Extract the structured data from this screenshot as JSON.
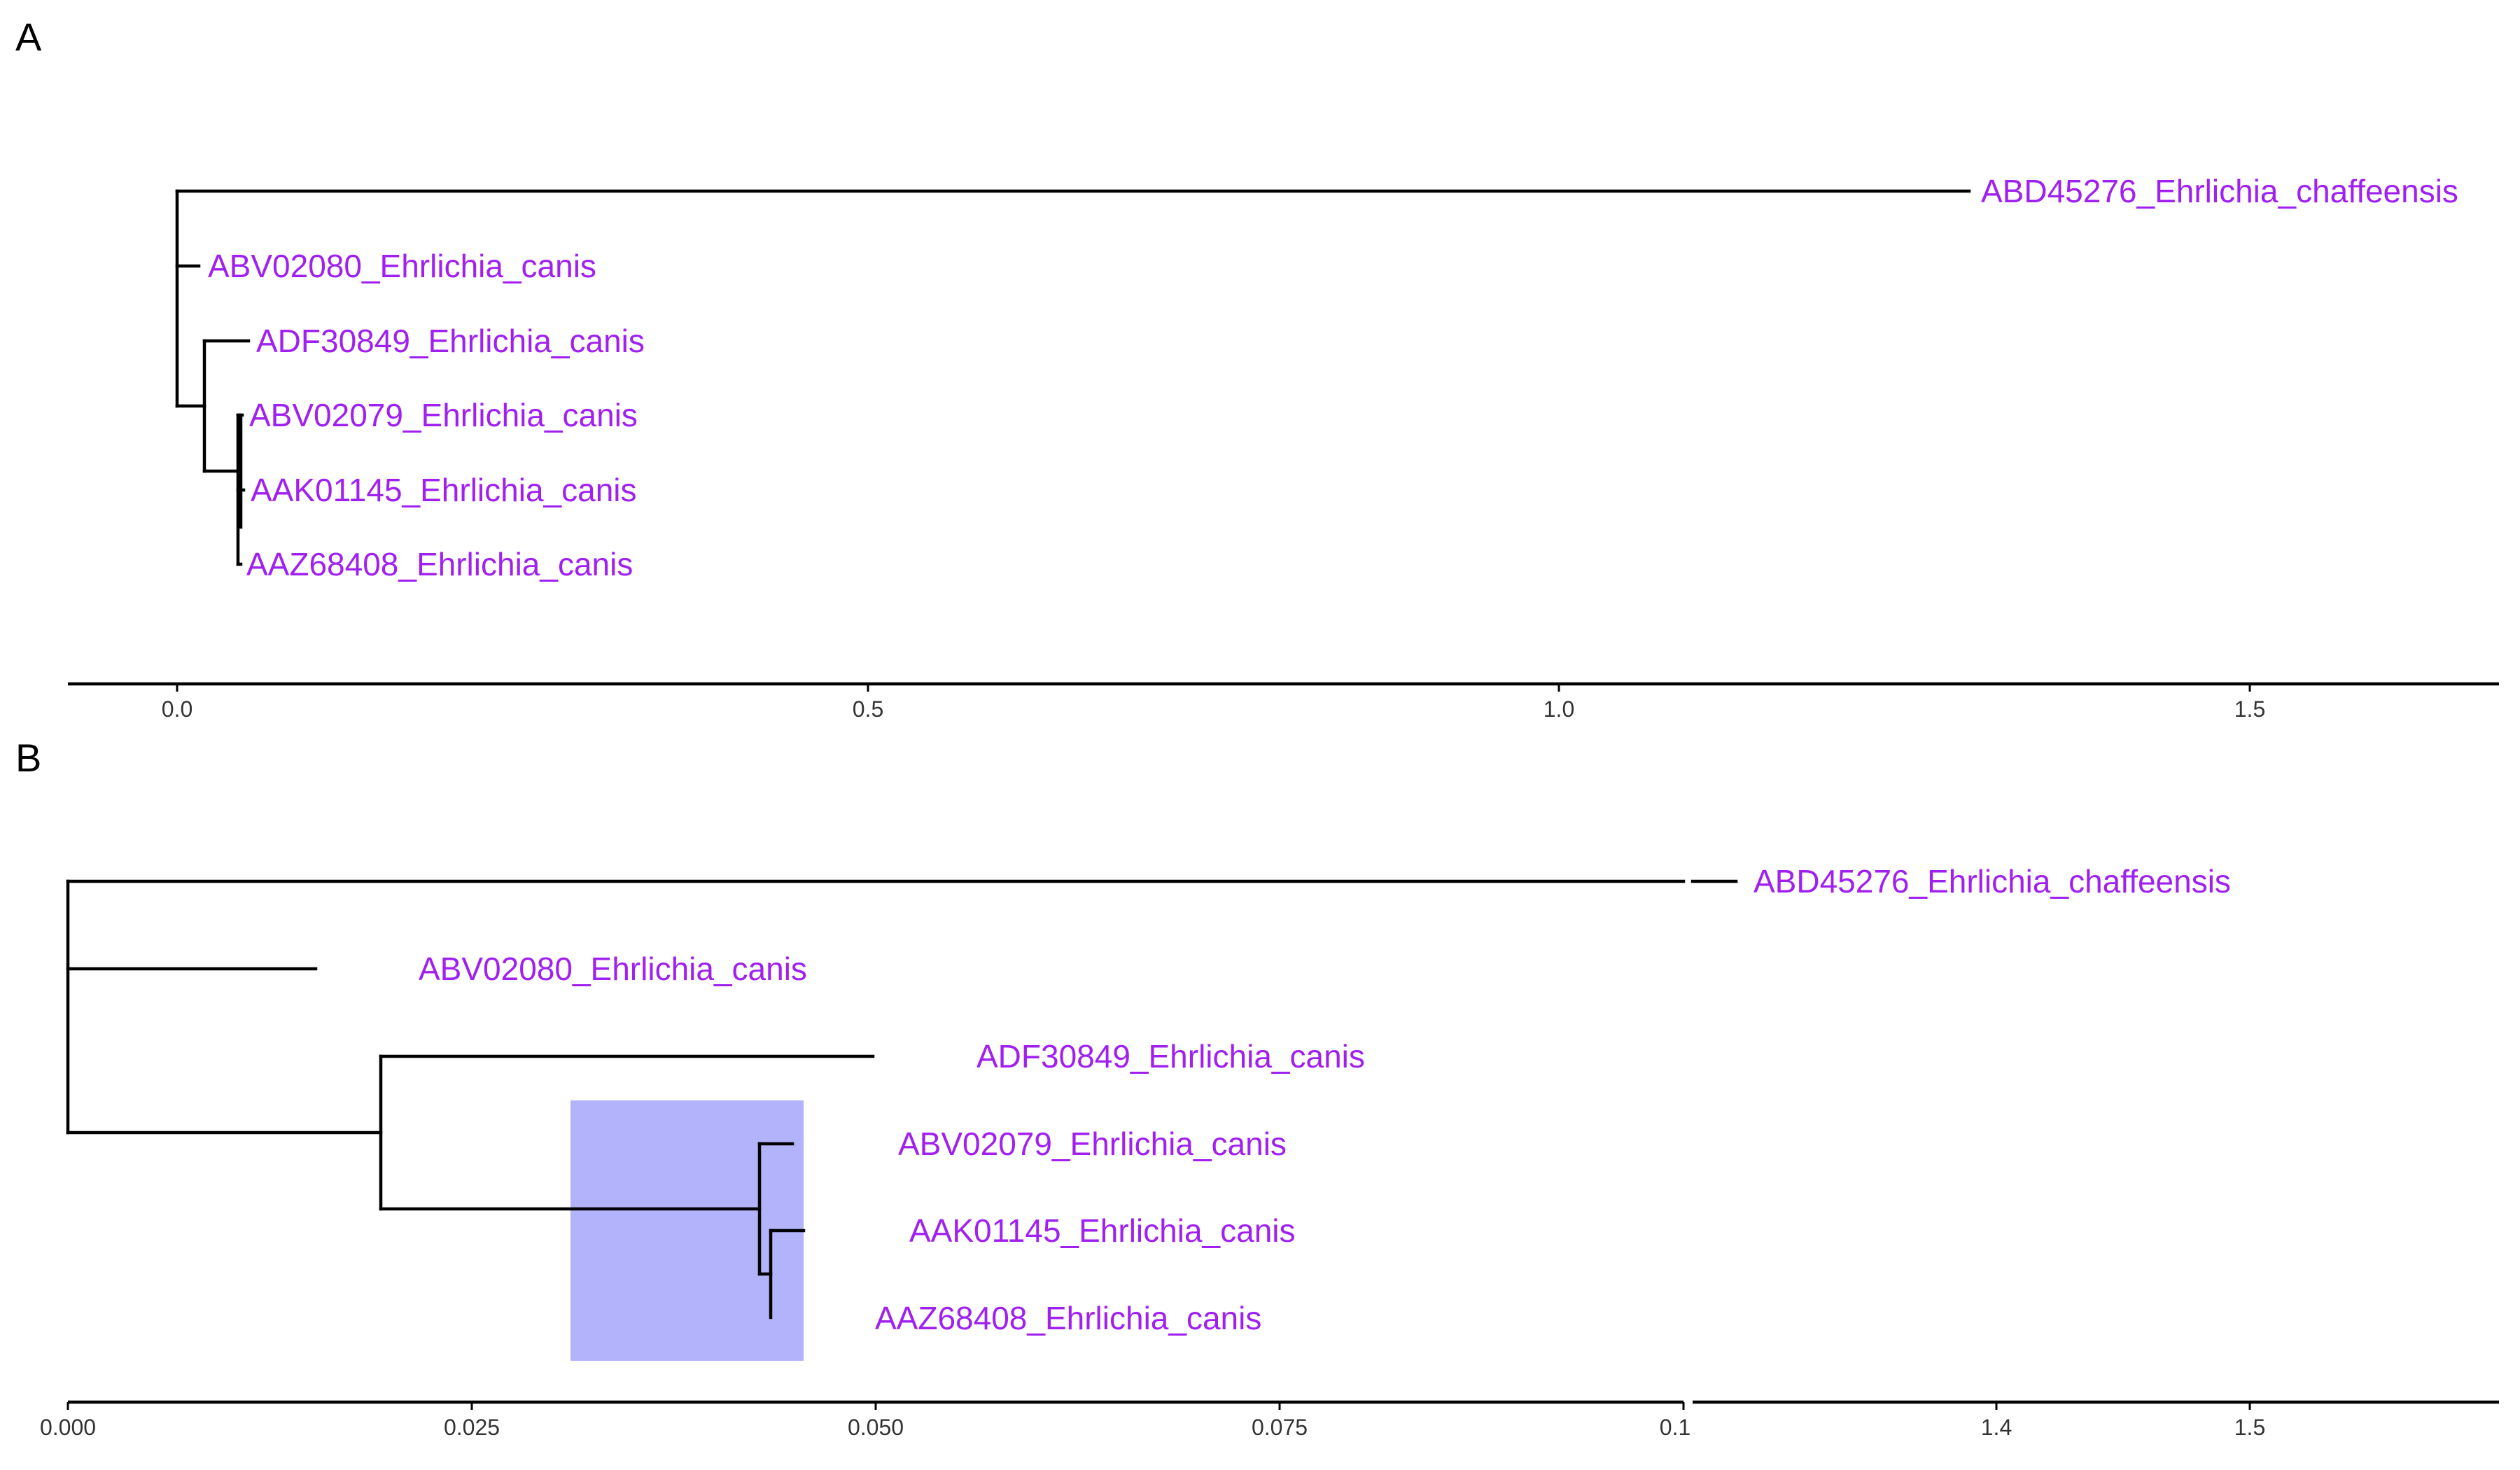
{
  "panels": [
    {
      "label": "A",
      "axis": {
        "min": 0,
        "max": 1.6,
        "ticks": [
          "0.0",
          "0.5",
          "1.0",
          "1.5"
        ]
      },
      "tips": [
        {
          "name": "ABD45276_Ehrlichia_chaffeensis"
        },
        {
          "name": "ABV02080_Ehrlichia_canis"
        },
        {
          "name": "ADF30849_Ehrlichia_canis"
        },
        {
          "name": "ABV02079_Ehrlichia_canis"
        },
        {
          "name": "AAK01145_Ehrlichia_canis"
        },
        {
          "name": "AAZ68408_Ehrlichia_canis"
        }
      ]
    },
    {
      "label": "B",
      "axis": {
        "broken": true,
        "left_segment": {
          "min": 0,
          "max": 0.1,
          "ticks": [
            "0.000",
            "0.025",
            "0.050",
            "0.075",
            "0.1"
          ]
        },
        "right_segment": {
          "ticks": [
            "1.4",
            "1.5"
          ]
        }
      },
      "highlight_color": "#b3b3fb",
      "tips": [
        {
          "name": "ABD45276_Ehrlichia_chaffeensis"
        },
        {
          "name": "ABV02080_Ehrlichia_canis"
        },
        {
          "name": "ADF30849_Ehrlichia_canis"
        },
        {
          "name": "ABV02079_Ehrlichia_canis"
        },
        {
          "name": "AAK01145_Ehrlichia_canis"
        },
        {
          "name": "AAZ68408_Ehrlichia_canis"
        }
      ]
    }
  ],
  "colors": {
    "tip_label": "#a020f0",
    "branch": "#000000"
  }
}
